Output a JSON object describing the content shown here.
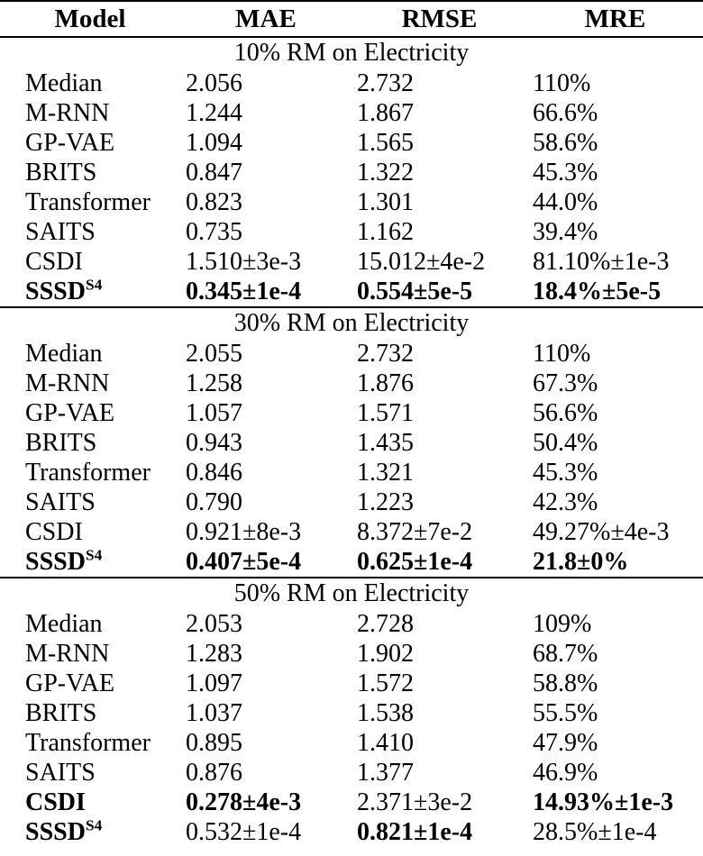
{
  "page": {
    "background_color": "#ffffff",
    "text_color": "#000000",
    "rule_color": "#000000"
  },
  "table": {
    "columns": [
      "Model",
      "MAE",
      "RMSE",
      "MRE"
    ],
    "sections": [
      {
        "title": "10% RM on Electricity",
        "rows": [
          {
            "model": "Median",
            "sup": "",
            "mae": "2.056",
            "rmse": "2.732",
            "mre": "110%",
            "bold": []
          },
          {
            "model": "M-RNN",
            "sup": "",
            "mae": "1.244",
            "rmse": "1.867",
            "mre": "66.6%",
            "bold": []
          },
          {
            "model": "GP-VAE",
            "sup": "",
            "mae": "1.094",
            "rmse": "1.565",
            "mre": "58.6%",
            "bold": []
          },
          {
            "model": "BRITS",
            "sup": "",
            "mae": "0.847",
            "rmse": "1.322",
            "mre": "45.3%",
            "bold": []
          },
          {
            "model": "Transformer",
            "sup": "",
            "mae": "0.823",
            "rmse": "1.301",
            "mre": "44.0%",
            "bold": []
          },
          {
            "model": "SAITS",
            "sup": "",
            "mae": "0.735",
            "rmse": "1.162",
            "mre": "39.4%",
            "bold": []
          },
          {
            "model": "CSDI",
            "sup": "",
            "mae": "1.510±3e-3",
            "rmse": "15.012±4e-2",
            "mre": "81.10%±1e-3",
            "bold": []
          },
          {
            "model": "SSSD",
            "sup": "S4",
            "mae": "0.345±1e-4",
            "rmse": "0.554±5e-5",
            "mre": "18.4%±5e-5",
            "bold": [
              "model",
              "mae",
              "rmse",
              "mre"
            ]
          }
        ]
      },
      {
        "title": "30% RM on Electricity",
        "rows": [
          {
            "model": "Median",
            "sup": "",
            "mae": "2.055",
            "rmse": "2.732",
            "mre": "110%",
            "bold": []
          },
          {
            "model": "M-RNN",
            "sup": "",
            "mae": "1.258",
            "rmse": "1.876",
            "mre": "67.3%",
            "bold": []
          },
          {
            "model": "GP-VAE",
            "sup": "",
            "mae": "1.057",
            "rmse": "1.571",
            "mre": "56.6%",
            "bold": []
          },
          {
            "model": "BRITS",
            "sup": "",
            "mae": "0.943",
            "rmse": "1.435",
            "mre": "50.4%",
            "bold": []
          },
          {
            "model": "Transformer",
            "sup": "",
            "mae": "0.846",
            "rmse": "1.321",
            "mre": "45.3%",
            "bold": []
          },
          {
            "model": "SAITS",
            "sup": "",
            "mae": "0.790",
            "rmse": "1.223",
            "mre": "42.3%",
            "bold": []
          },
          {
            "model": "CSDI",
            "sup": "",
            "mae": "0.921±8e-3",
            "rmse": "8.372±7e-2",
            "mre": "49.27%±4e-3",
            "bold": []
          },
          {
            "model": "SSSD",
            "sup": "S4",
            "mae": "0.407±5e-4",
            "rmse": "0.625±1e-4",
            "mre": "21.8±0%",
            "bold": [
              "model",
              "mae",
              "rmse",
              "mre"
            ]
          }
        ]
      },
      {
        "title": "50% RM on Electricity",
        "rows": [
          {
            "model": "Median",
            "sup": "",
            "mae": "2.053",
            "rmse": "2.728",
            "mre": "109%",
            "bold": []
          },
          {
            "model": "M-RNN",
            "sup": "",
            "mae": "1.283",
            "rmse": "1.902",
            "mre": "68.7%",
            "bold": []
          },
          {
            "model": "GP-VAE",
            "sup": "",
            "mae": "1.097",
            "rmse": "1.572",
            "mre": "58.8%",
            "bold": []
          },
          {
            "model": "BRITS",
            "sup": "",
            "mae": "1.037",
            "rmse": "1.538",
            "mre": "55.5%",
            "bold": []
          },
          {
            "model": "Transformer",
            "sup": "",
            "mae": "0.895",
            "rmse": "1.410",
            "mre": "47.9%",
            "bold": []
          },
          {
            "model": "SAITS",
            "sup": "",
            "mae": "0.876",
            "rmse": "1.377",
            "mre": "46.9%",
            "bold": []
          },
          {
            "model": "CSDI",
            "sup": "",
            "mae": "0.278±4e-3",
            "rmse": "2.371±3e-2",
            "mre": "14.93%±1e-3",
            "bold": [
              "model",
              "mae",
              "mre"
            ]
          },
          {
            "model": "SSSD",
            "sup": "S4",
            "mae": "0.532±1e-4",
            "rmse": "0.821±1e-4",
            "mre": "28.5%±1e-4",
            "bold": [
              "model",
              "rmse"
            ]
          }
        ]
      }
    ]
  }
}
